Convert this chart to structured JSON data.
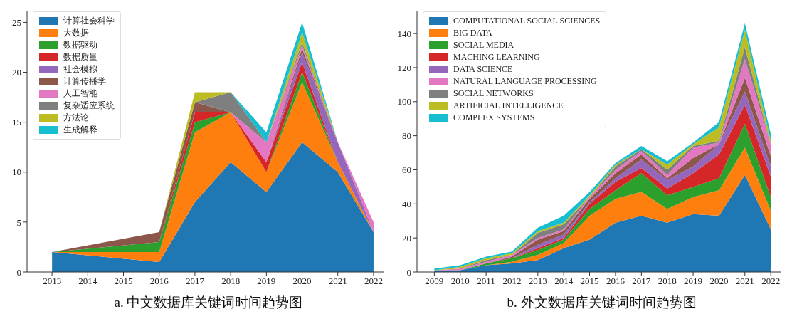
{
  "chart_data": [
    {
      "type": "area",
      "title": "a. 中文数据库关键词时间趋势图",
      "stacked": true,
      "legend": "top left",
      "x": [
        2013,
        2016,
        2017,
        2018,
        2019,
        2020,
        2021,
        2022
      ],
      "xlim": [
        2012.3,
        2022.3
      ],
      "xticks": [
        2013,
        2014,
        2015,
        2016,
        2017,
        2018,
        2019,
        2020,
        2021,
        2022
      ],
      "ylim": [
        0,
        26.1
      ],
      "yticks": [
        0,
        5,
        10,
        15,
        20,
        25
      ],
      "series": [
        {
          "name": "计算社会科学",
          "color": "#1f77b4",
          "values": [
            2,
            1,
            7,
            11,
            8,
            13,
            10,
            4
          ]
        },
        {
          "name": "大数据",
          "color": "#ff7f0e",
          "values": [
            0,
            1,
            7,
            5,
            2,
            6,
            1,
            0
          ]
        },
        {
          "name": "数据驱动",
          "color": "#2ca02c",
          "values": [
            0,
            1,
            1,
            0,
            0,
            1,
            0,
            0
          ]
        },
        {
          "name": "数据质量",
          "color": "#d62728",
          "values": [
            0,
            0,
            1,
            0,
            1,
            1,
            0,
            0
          ]
        },
        {
          "name": "社会模拟",
          "color": "#9467bd",
          "values": [
            0,
            0,
            0,
            0,
            0,
            1,
            2,
            0
          ]
        },
        {
          "name": "计算传播学",
          "color": "#8c564b",
          "values": [
            0,
            1,
            1,
            0,
            0,
            0.4,
            0,
            0
          ]
        },
        {
          "name": "人工智能",
          "color": "#e377c2",
          "values": [
            0,
            0,
            0,
            0,
            2,
            0.3,
            0,
            1
          ]
        },
        {
          "name": "复杂适应系统",
          "color": "#7f7f7f",
          "values": [
            0,
            0,
            0,
            2,
            0,
            0.3,
            0,
            0
          ]
        },
        {
          "name": "方法论",
          "color": "#bcbd22",
          "values": [
            0,
            0,
            1,
            0,
            0,
            1,
            0,
            0
          ]
        },
        {
          "name": "生成解释",
          "color": "#17becf",
          "values": [
            0,
            0,
            0,
            0,
            1,
            1,
            0,
            0
          ]
        }
      ]
    },
    {
      "type": "area",
      "title": "b. 外文数据库关键词时间趋势图",
      "stacked": true,
      "legend": "top left",
      "x": [
        2009,
        2010,
        2011,
        2012,
        2013,
        2014,
        2015,
        2016,
        2017,
        2018,
        2019,
        2020,
        2021,
        2022
      ],
      "xlim": [
        2008.33,
        2022.38
      ],
      "xticks": [
        2009,
        2010,
        2011,
        2012,
        2013,
        2014,
        2015,
        2016,
        2017,
        2018,
        2019,
        2020,
        2021,
        2022
      ],
      "ylim": [
        0,
        153
      ],
      "yticks": [
        0,
        20,
        40,
        60,
        80,
        100,
        120,
        140
      ],
      "series": [
        {
          "name": "COMPUTATIONAL SOCIAL SCIENCES",
          "color": "#1f77b4",
          "values": [
            1,
            1,
            4,
            5,
            7,
            14,
            19,
            29,
            33,
            29,
            34,
            33,
            57,
            25
          ]
        },
        {
          "name": "BIG DATA",
          "color": "#ff7f0e",
          "values": [
            0,
            0,
            0,
            1,
            3,
            3,
            14,
            14,
            14,
            8,
            10,
            15,
            16,
            11
          ]
        },
        {
          "name": "SOCIAL MEDIA",
          "color": "#2ca02c",
          "values": [
            0,
            0,
            1,
            2,
            3,
            2,
            4,
            5,
            11,
            8,
            6,
            7,
            14,
            8
          ]
        },
        {
          "name": "MACHING LEARNING",
          "color": "#d62728",
          "values": [
            0,
            0,
            0,
            0,
            1,
            1,
            3,
            5,
            3,
            4,
            8,
            14,
            11,
            12
          ]
        },
        {
          "name": "DATA SCIENCE",
          "color": "#9467bd",
          "values": [
            0,
            0,
            0,
            0,
            2,
            2,
            1,
            2,
            5,
            5,
            4,
            6,
            8,
            6
          ]
        },
        {
          "color": "#8c564b",
          "values": [
            0,
            0,
            0,
            1,
            3,
            2,
            2,
            3,
            3,
            1,
            5,
            0,
            8,
            6
          ]
        },
        {
          "name": "NATURAL LANGUAGE PROCESSING",
          "color": "#e377c2",
          "values": [
            0,
            1,
            1,
            1,
            1,
            1,
            1,
            2,
            2,
            2,
            6,
            1,
            11,
            7
          ]
        },
        {
          "name": "SOCIAL NETWORKS",
          "color": "#7f7f7f",
          "values": [
            0,
            0,
            1,
            0,
            3,
            3,
            0,
            2,
            1,
            3,
            1,
            1,
            7,
            0
          ]
        },
        {
          "name": "ARTIFICIAL INTELLIGENCE",
          "color": "#bcbd22",
          "values": [
            0,
            1,
            1,
            1,
            1,
            1,
            1,
            1,
            0,
            3,
            1,
            8,
            10,
            2
          ]
        },
        {
          "name": "COMPLEX SYSTEMS",
          "color": "#17becf",
          "values": [
            1,
            1,
            1,
            1,
            2,
            4,
            2,
            1,
            2,
            2,
            1,
            3,
            4,
            4
          ]
        }
      ]
    }
  ]
}
